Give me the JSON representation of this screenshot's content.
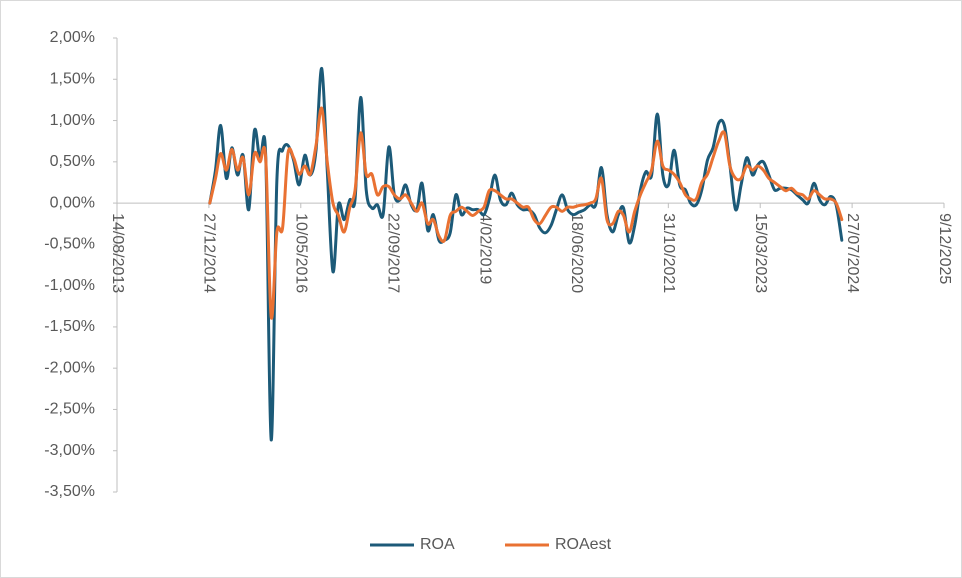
{
  "chart_data": {
    "type": "line",
    "x": [
      "2015-01-01",
      "2015-02-01",
      "2015-03-01",
      "2015-04-01",
      "2015-05-01",
      "2015-06-01",
      "2015-07-01",
      "2015-08-01",
      "2015-09-01",
      "2015-10-01",
      "2015-11-01",
      "2015-12-01",
      "2016-01-01",
      "2016-02-01",
      "2016-03-01",
      "2016-04-01",
      "2016-05-01",
      "2016-06-01",
      "2016-07-01",
      "2016-08-01",
      "2016-09-01",
      "2016-10-01",
      "2016-11-01",
      "2016-12-01",
      "2017-01-01",
      "2017-02-01",
      "2017-03-01",
      "2017-04-01",
      "2017-05-01",
      "2017-06-01",
      "2017-07-01",
      "2017-08-01",
      "2017-09-01",
      "2017-10-01",
      "2017-11-01",
      "2017-12-01",
      "2018-01-01",
      "2018-02-01",
      "2018-03-01",
      "2018-04-01",
      "2018-05-01",
      "2018-06-01",
      "2018-07-01",
      "2018-08-01",
      "2018-09-01",
      "2018-10-01",
      "2018-11-01",
      "2018-12-01",
      "2019-01-01",
      "2019-02-01",
      "2019-03-01",
      "2019-04-01",
      "2019-05-01",
      "2019-06-01",
      "2019-07-01",
      "2019-08-01",
      "2019-09-01",
      "2019-10-01",
      "2019-11-01",
      "2019-12-01",
      "2020-01-01",
      "2020-02-01",
      "2020-03-01",
      "2020-04-01",
      "2020-05-01",
      "2020-06-01",
      "2020-07-01",
      "2020-08-01",
      "2020-09-01",
      "2020-10-01",
      "2020-11-01",
      "2020-12-01",
      "2021-01-01",
      "2021-02-01",
      "2021-03-01",
      "2021-04-01",
      "2021-05-01",
      "2021-06-01",
      "2021-07-01",
      "2021-08-01",
      "2021-09-01",
      "2021-10-01",
      "2021-11-01",
      "2021-12-01",
      "2022-01-01",
      "2022-02-01",
      "2022-03-01",
      "2022-04-01",
      "2022-05-01",
      "2022-06-01",
      "2022-07-01",
      "2022-08-01",
      "2022-09-01",
      "2022-10-01",
      "2022-11-01",
      "2022-12-01",
      "2023-01-01",
      "2023-02-01",
      "2023-03-01",
      "2023-04-01",
      "2023-05-01",
      "2023-06-01",
      "2023-07-01",
      "2023-08-01",
      "2023-09-01",
      "2023-10-01",
      "2023-11-01",
      "2023-12-01",
      "2024-01-01",
      "2024-02-01",
      "2024-03-01",
      "2024-04-01",
      "2024-05-01",
      "2024-06-01"
    ],
    "series": [
      {
        "name": "ROA",
        "color": "#1c5a78",
        "values": [
          0.0,
          0.4,
          0.94,
          0.3,
          0.67,
          0.34,
          0.58,
          -0.08,
          0.88,
          0.52,
          0.58,
          -2.87,
          0.28,
          0.64,
          0.7,
          0.52,
          0.22,
          0.58,
          0.34,
          0.64,
          1.63,
          0.4,
          -0.83,
          -0.02,
          -0.2,
          0.04,
          0.04,
          1.28,
          0.16,
          -0.06,
          -0.02,
          -0.14,
          0.68,
          0.1,
          0.04,
          0.22,
          -0.02,
          -0.08,
          0.24,
          -0.33,
          -0.14,
          -0.45,
          -0.45,
          -0.36,
          0.1,
          -0.14,
          -0.06,
          -0.08,
          -0.08,
          -0.14,
          0.04,
          0.34,
          0.04,
          -0.02,
          0.12,
          -0.02,
          -0.08,
          -0.08,
          -0.14,
          -0.3,
          -0.36,
          -0.27,
          -0.08,
          0.1,
          -0.08,
          -0.14,
          -0.11,
          -0.08,
          -0.02,
          -0.02,
          0.43,
          -0.14,
          -0.35,
          -0.14,
          -0.06,
          -0.48,
          -0.27,
          0.16,
          0.38,
          0.34,
          1.08,
          0.34,
          0.22,
          0.64,
          0.22,
          0.16,
          0.0,
          -0.02,
          0.16,
          0.52,
          0.67,
          0.97,
          0.94,
          0.46,
          -0.08,
          0.22,
          0.55,
          0.34,
          0.46,
          0.5,
          0.34,
          0.16,
          0.18,
          0.18,
          0.16,
          0.1,
          0.04,
          0.0,
          0.24,
          0.04,
          -0.02,
          0.08,
          -0.02,
          -0.45
        ]
      },
      {
        "name": "ROAest",
        "color": "#e97132",
        "values": [
          0.0,
          0.3,
          0.6,
          0.4,
          0.65,
          0.4,
          0.55,
          0.1,
          0.6,
          0.5,
          0.55,
          -1.38,
          -0.35,
          -0.3,
          0.6,
          0.55,
          0.35,
          0.45,
          0.35,
          0.7,
          1.15,
          0.5,
          0.0,
          -0.15,
          -0.35,
          -0.05,
          0.15,
          0.85,
          0.35,
          0.35,
          0.1,
          0.2,
          0.2,
          0.1,
          0.05,
          0.1,
          0.0,
          -0.1,
          0.0,
          -0.25,
          -0.2,
          -0.4,
          -0.45,
          -0.15,
          -0.1,
          -0.05,
          -0.1,
          -0.15,
          -0.1,
          -0.05,
          0.15,
          0.15,
          0.1,
          0.05,
          0.05,
          0.0,
          -0.05,
          -0.05,
          -0.2,
          -0.25,
          -0.15,
          -0.05,
          -0.05,
          -0.1,
          -0.05,
          -0.05,
          -0.03,
          -0.02,
          0.0,
          0.05,
          0.3,
          -0.2,
          -0.25,
          -0.1,
          -0.15,
          -0.35,
          -0.1,
          0.1,
          0.25,
          0.4,
          0.75,
          0.45,
          0.4,
          0.35,
          0.25,
          0.1,
          0.05,
          0.05,
          0.25,
          0.35,
          0.55,
          0.75,
          0.85,
          0.45,
          0.3,
          0.3,
          0.45,
          0.4,
          0.45,
          0.4,
          0.3,
          0.25,
          0.2,
          0.15,
          0.18,
          0.12,
          0.1,
          0.05,
          0.15,
          0.1,
          0.05,
          0.05,
          0.0,
          -0.2
        ]
      }
    ],
    "xlim": [
      "2013-08-14",
      "2025-12-09"
    ],
    "xticks": [
      {
        "value": "2013-08-14",
        "label": "14/08/2013"
      },
      {
        "value": "2014-12-27",
        "label": "27/12/2014"
      },
      {
        "value": "2016-05-10",
        "label": "10/05/2016"
      },
      {
        "value": "2017-09-22",
        "label": "22/09/2017"
      },
      {
        "value": "2019-02-04",
        "label": "4/02/2019"
      },
      {
        "value": "2020-06-18",
        "label": "18/06/2020"
      },
      {
        "value": "2021-10-31",
        "label": "31/10/2021"
      },
      {
        "value": "2023-03-15",
        "label": "15/03/2023"
      },
      {
        "value": "2024-07-27",
        "label": "27/07/2024"
      },
      {
        "value": "2025-12-09",
        "label": "9/12/2025"
      }
    ],
    "ylim": [
      -3.5,
      2
    ],
    "yticks": [
      {
        "value": 2,
        "label": "2,00%"
      },
      {
        "value": 1.5,
        "label": "1,50%"
      },
      {
        "value": 1,
        "label": "1,00%"
      },
      {
        "value": 0.5,
        "label": "0,50%"
      },
      {
        "value": 0,
        "label": "0,00%"
      },
      {
        "value": -0.5,
        "label": "-0,50%"
      },
      {
        "value": -1,
        "label": "-1,00%"
      },
      {
        "value": -1.5,
        "label": "-1,50%"
      },
      {
        "value": -2,
        "label": "-2,00%"
      },
      {
        "value": -2.5,
        "label": "-2,50%"
      },
      {
        "value": -3,
        "label": "-3,00%"
      },
      {
        "value": -3.5,
        "label": "-3,50%"
      }
    ],
    "smooth": true,
    "legend": "bottom"
  }
}
